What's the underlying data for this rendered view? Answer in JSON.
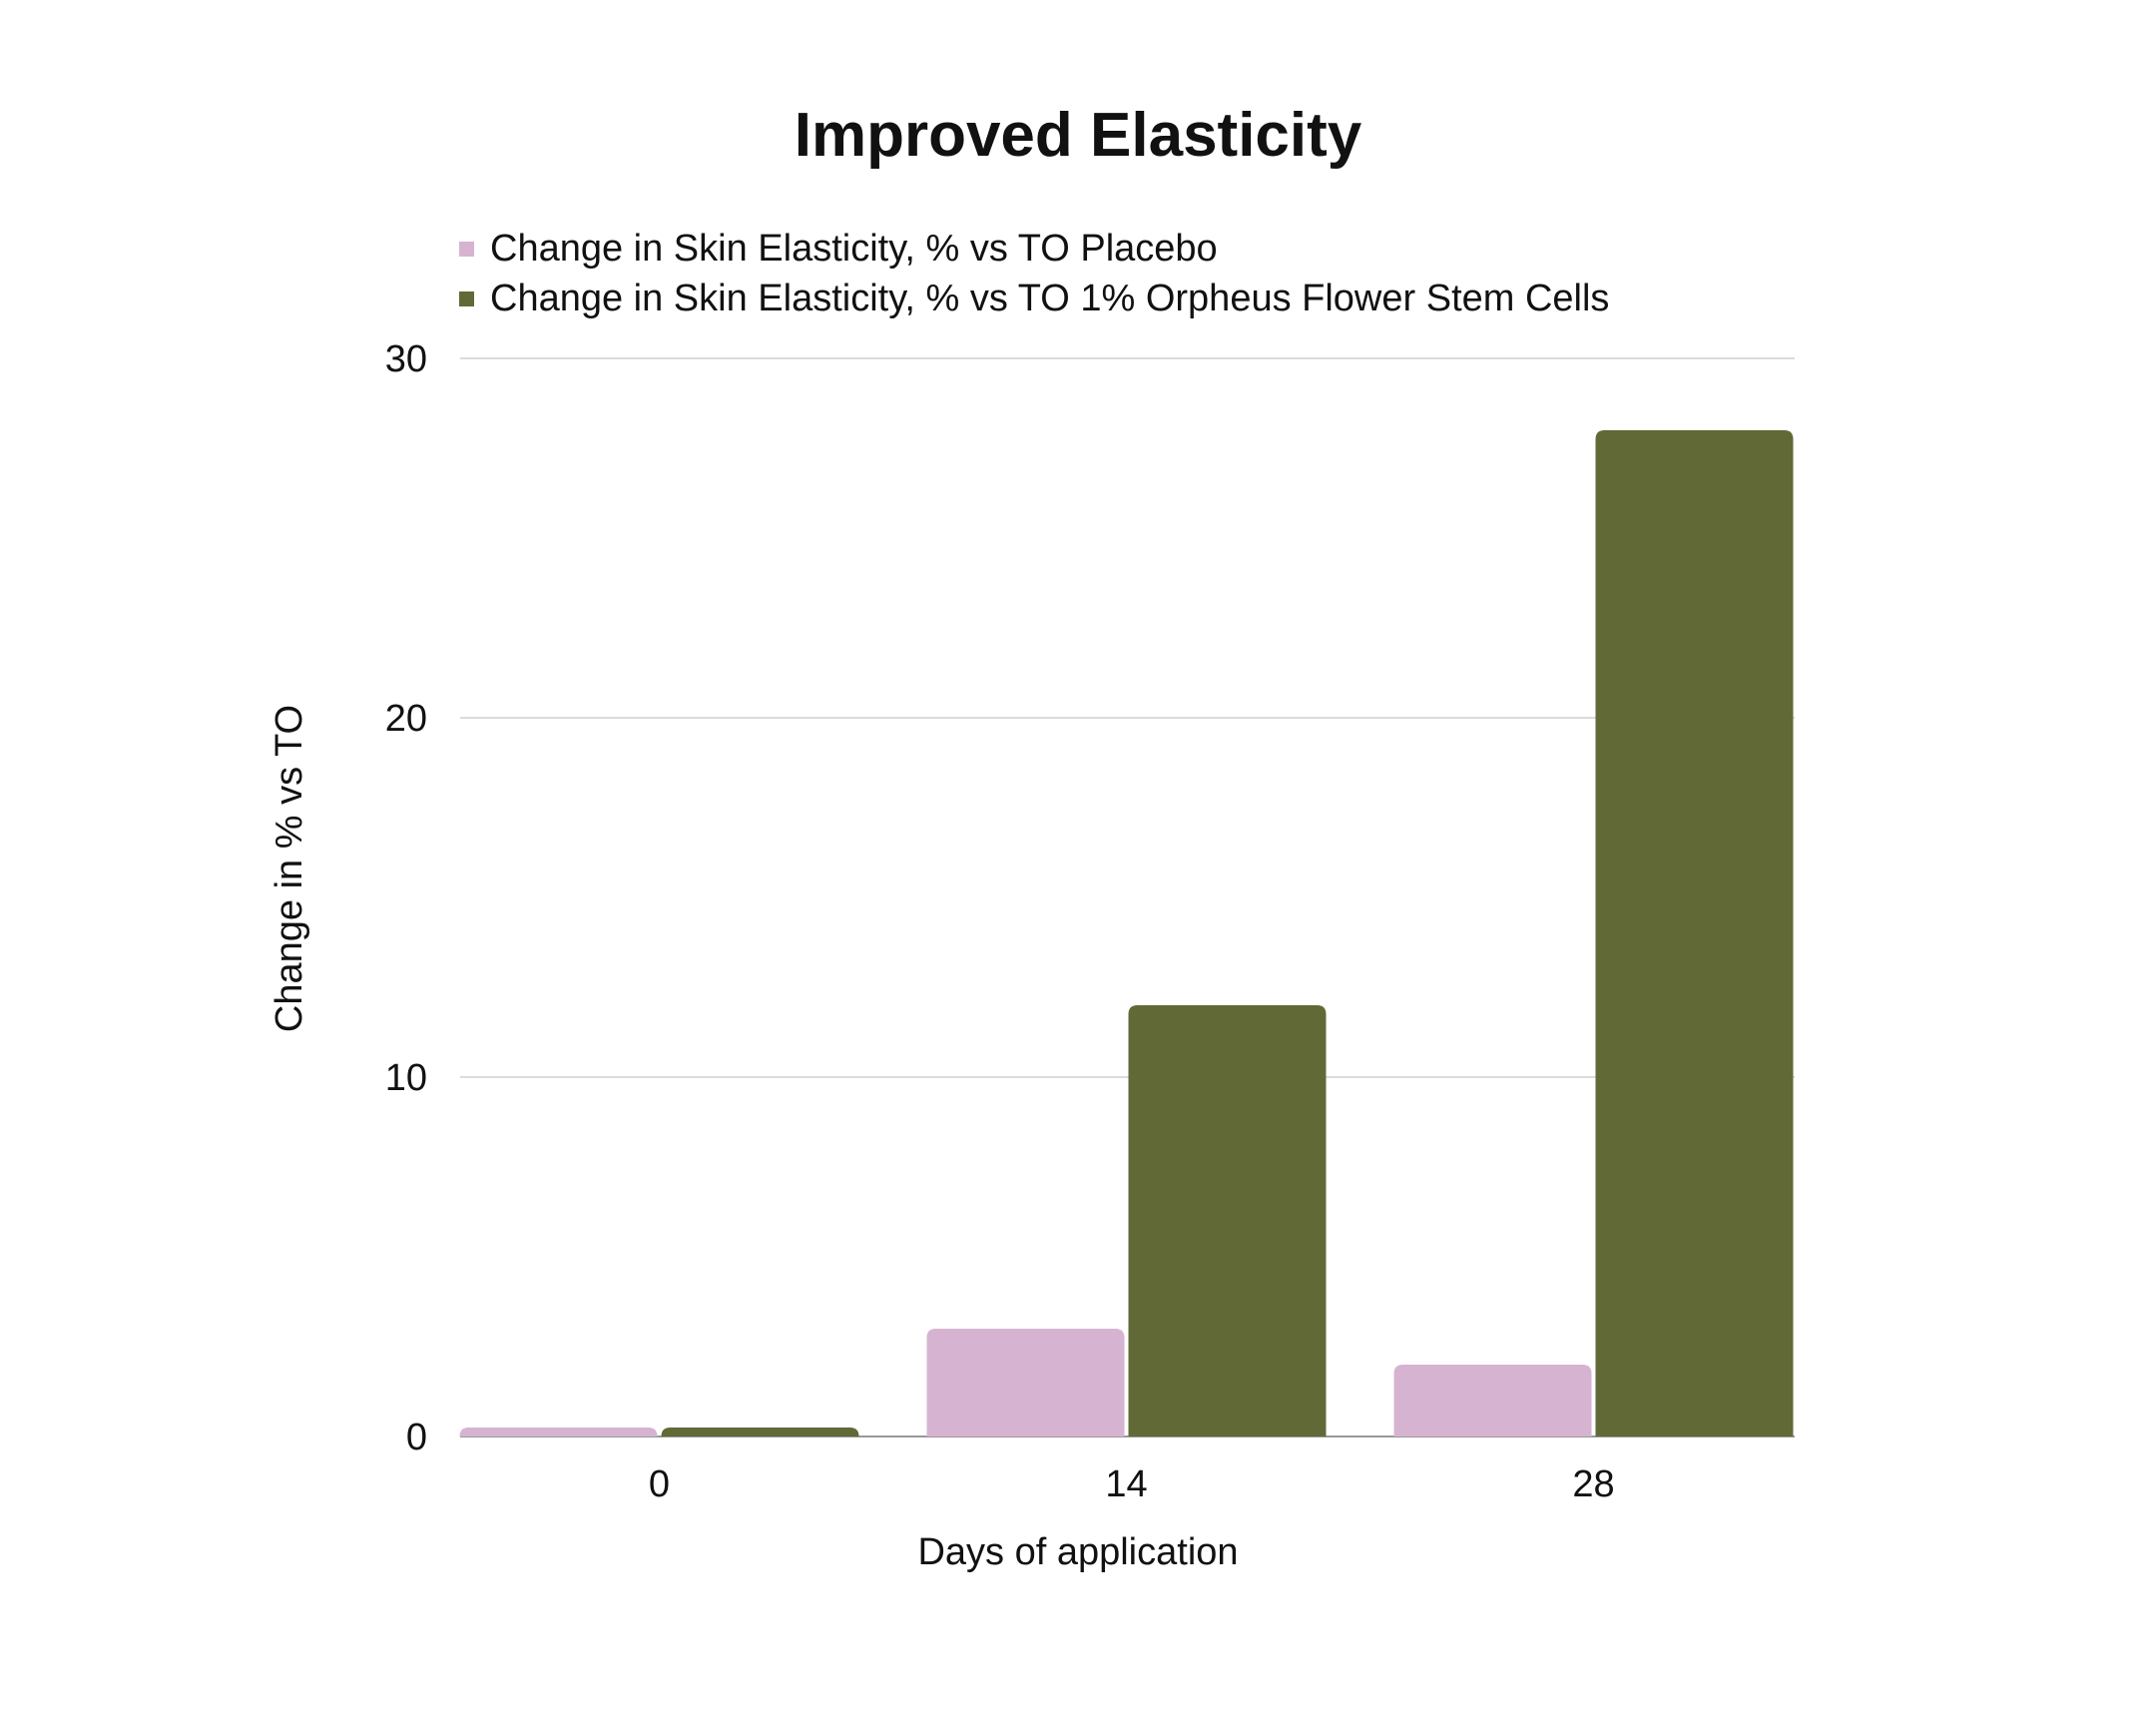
{
  "chart_data": {
    "type": "bar",
    "title": "Improved Elasticity",
    "xlabel": "Days of application",
    "ylabel": "Change in % vs TO",
    "categories": [
      "0",
      "14",
      "28"
    ],
    "series": [
      {
        "name": "Change in Skin Elasticity, % vs TO Placebo",
        "color": "#d6b4d1",
        "values": [
          0.25,
          3,
          2
        ]
      },
      {
        "name": "Change in Skin Elasticity, % vs TO 1% Orpheus Flower Stem Cells",
        "color": "#616937",
        "values": [
          0.25,
          12,
          28
        ]
      }
    ],
    "ylim": [
      0,
      30
    ],
    "yticks": [
      "0",
      "10",
      "20",
      "30"
    ],
    "grid": true,
    "legend_position": "top-left"
  }
}
